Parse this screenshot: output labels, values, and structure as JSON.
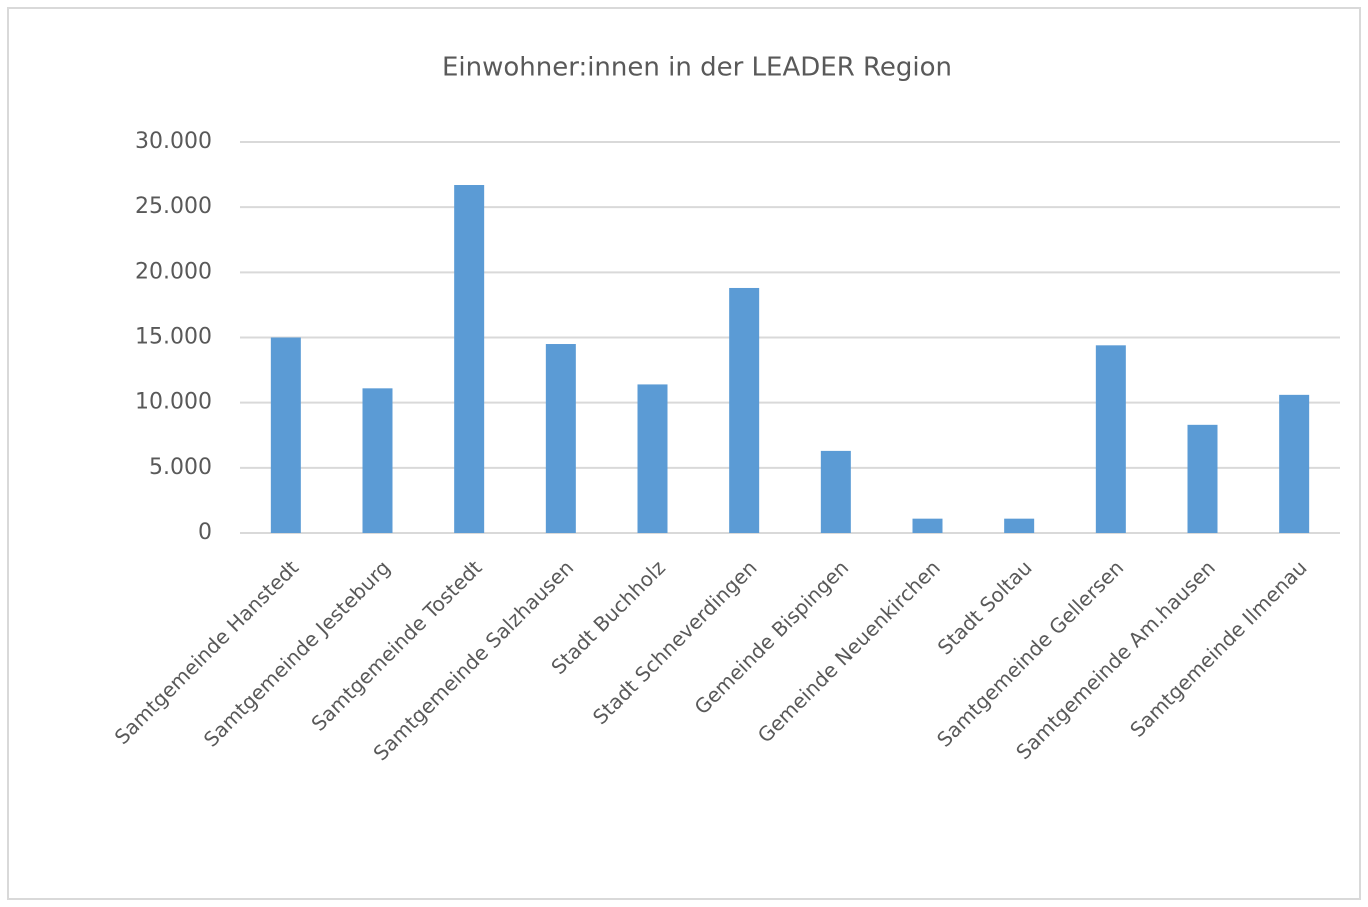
{
  "chart_data": {
    "type": "bar",
    "title": "Einwohner:innen in der LEADER Region",
    "categories": [
      "Samtgemeinde Hanstedt",
      "Samtgemeinde Jesteburg",
      "Samtgemeinde Tostedt",
      "Samtgemeinde Salzhausen",
      "Stadt Buchholz",
      "Stadt Schneverdingen",
      "Gemeinde Bispingen",
      "Gemeinde Neuenkirchen",
      "Stadt Soltau",
      "Samtgemeinde Gellersen",
      "Samtgemeinde Am.hausen",
      "Samtgemeinde Ilmenau"
    ],
    "values": [
      15000,
      11100,
      26700,
      14500,
      11400,
      18800,
      6300,
      1100,
      1100,
      14400,
      8300,
      10600
    ],
    "color": "#5b9bd5",
    "ylim": [
      0,
      30000
    ],
    "yticks": [
      0,
      {
        "value": 5000,
        "label": "5.000"
      },
      {
        "value": 10000,
        "label": "10.000"
      },
      {
        "value": 15000,
        "label": "15.000"
      },
      {
        "value": 20000,
        "label": "20.000"
      },
      {
        "value": 25000,
        "label": "25.000"
      },
      {
        "value": 30000,
        "label": "30.000"
      }
    ],
    "grid": true
  }
}
